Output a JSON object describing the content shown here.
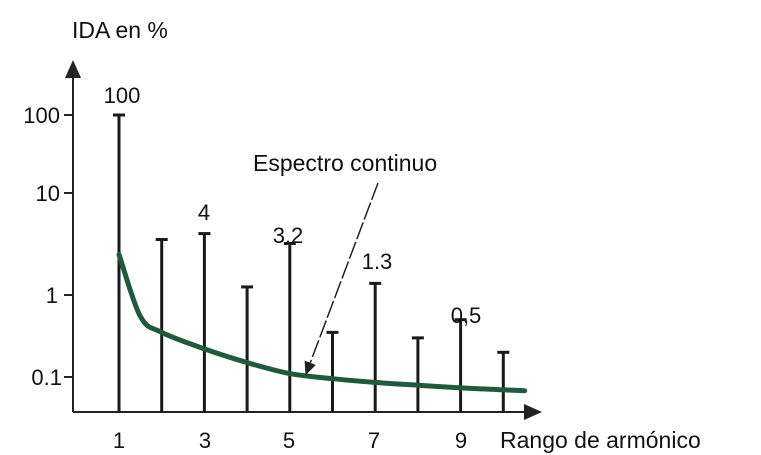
{
  "chart_data": {
    "type": "bar",
    "title": "",
    "xlabel": "Rango de armónico",
    "ylabel": "IDA en %",
    "x_tick_labels": [
      "1",
      "3",
      "5",
      "7",
      "9"
    ],
    "y_tick_labels": [
      "100",
      "10",
      "1",
      "0.1"
    ],
    "y_scale": "log (broken, not uniform)",
    "grid": false,
    "legend": "none",
    "categories": [
      1,
      2,
      3,
      4,
      5,
      6,
      7,
      8,
      9,
      10
    ],
    "series": [
      {
        "values": [
          100,
          3.5,
          4,
          1.2,
          3.2,
          0.35,
          1.3,
          0.3,
          0.5,
          0.2
        ]
      }
    ],
    "data_labels": [
      {
        "x": 1,
        "text": "100"
      },
      {
        "x": 3,
        "text": "4"
      },
      {
        "x": 5,
        "text": "3.2"
      },
      {
        "x": 7,
        "text": "1.3"
      },
      {
        "x": 9,
        "text": "0,5"
      }
    ],
    "curve": {
      "label": "Espectro continuo",
      "x": [
        1,
        1.5,
        2,
        3,
        4,
        5,
        6,
        7,
        8,
        9,
        10,
        10.5
      ],
      "y": [
        2.5,
        0.55,
        0.35,
        0.22,
        0.15,
        0.11,
        0.095,
        0.085,
        0.078,
        0.072,
        0.068,
        0.066
      ]
    },
    "colors": {
      "bars": "#1a1a1a",
      "curve": "#1f5a3f",
      "axes": "#222222",
      "text": "#111111"
    }
  }
}
